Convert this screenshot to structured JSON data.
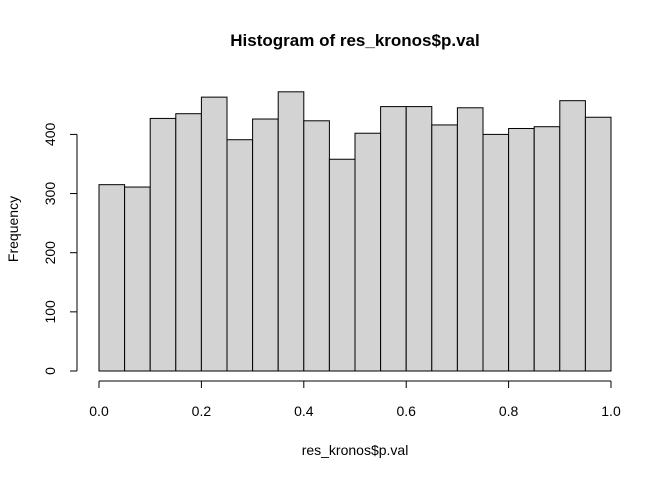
{
  "chart_data": {
    "type": "bar",
    "title": "Histogram of res_kronos$p.val",
    "xlabel": "res_kronos$p.val",
    "ylabel": "Frequency",
    "bin_edges": [
      0.0,
      0.05,
      0.1,
      0.15,
      0.2,
      0.25,
      0.3,
      0.35,
      0.4,
      0.45,
      0.5,
      0.55,
      0.6,
      0.65,
      0.7,
      0.75,
      0.8,
      0.85,
      0.9,
      0.95,
      1.0
    ],
    "values": [
      315,
      311,
      427,
      435,
      463,
      391,
      426,
      472,
      423,
      358,
      402,
      447,
      447,
      416,
      445,
      400,
      410,
      413,
      457,
      429
    ],
    "xlim": [
      0,
      1
    ],
    "ylim": [
      0,
      472
    ],
    "x_ticks": [
      "0.0",
      "0.2",
      "0.4",
      "0.6",
      "0.8",
      "1.0"
    ],
    "y_ticks": [
      "0",
      "100",
      "200",
      "300",
      "400"
    ],
    "bar_color": "#d3d3d3",
    "grid": false
  }
}
